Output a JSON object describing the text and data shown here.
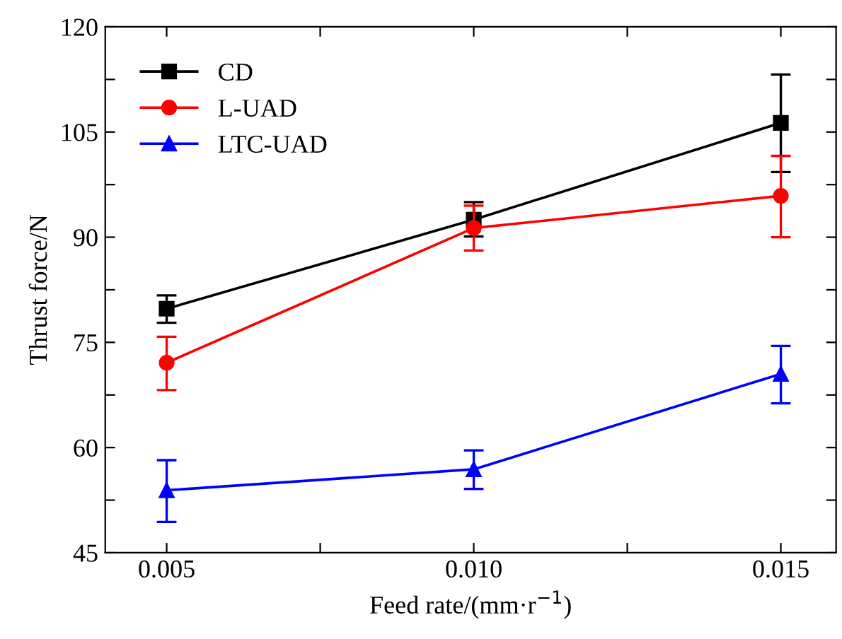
{
  "chart_data": {
    "type": "line",
    "xlabel": "Feed rate/(mm·r$^{−1}$)",
    "ylabel": "Thrust force/N",
    "x": [
      0.005,
      0.01,
      0.015
    ],
    "series": [
      {
        "name": "CD",
        "color": "#000000",
        "marker": "square",
        "values": [
          79.8,
          92.5,
          106.3
        ],
        "errors": [
          [
            77.8,
            81.7
          ],
          [
            90.1,
            95.0
          ],
          [
            99.3,
            113.2
          ]
        ]
      },
      {
        "name": "L-UAD",
        "color": "#ff0000",
        "marker": "circle",
        "values": [
          72.1,
          91.3,
          95.9
        ],
        "errors": [
          [
            68.2,
            75.8
          ],
          [
            88.1,
            94.5
          ],
          [
            90.0,
            101.6
          ]
        ]
      },
      {
        "name": "LTC-UAD",
        "color": "#0000ff",
        "marker": "triangle",
        "values": [
          53.9,
          56.9,
          70.5
        ],
        "errors": [
          [
            49.4,
            58.2
          ],
          [
            54.1,
            59.6
          ],
          [
            66.3,
            74.5
          ]
        ]
      }
    ],
    "xlim": [
      0.004,
      0.0159
    ],
    "ylim": [
      45,
      120
    ],
    "xticks": [
      {
        "value": 0.005,
        "label": "0.005"
      },
      {
        "value": 0.0075,
        "label": null
      },
      {
        "value": 0.01,
        "label": "0.010"
      },
      {
        "value": 0.0125,
        "label": null
      },
      {
        "value": 0.015,
        "label": "0.015"
      }
    ],
    "yticks": [
      45,
      {
        "value": 52.5,
        "label": null
      },
      60,
      {
        "value": 67.5,
        "label": null
      },
      75,
      {
        "value": 82.5,
        "label": null
      },
      90,
      {
        "value": 97.5,
        "label": null
      },
      105,
      {
        "value": 112.5,
        "label": null
      },
      120
    ],
    "grid": false,
    "legend": "top left",
    "line_style": "solid"
  }
}
